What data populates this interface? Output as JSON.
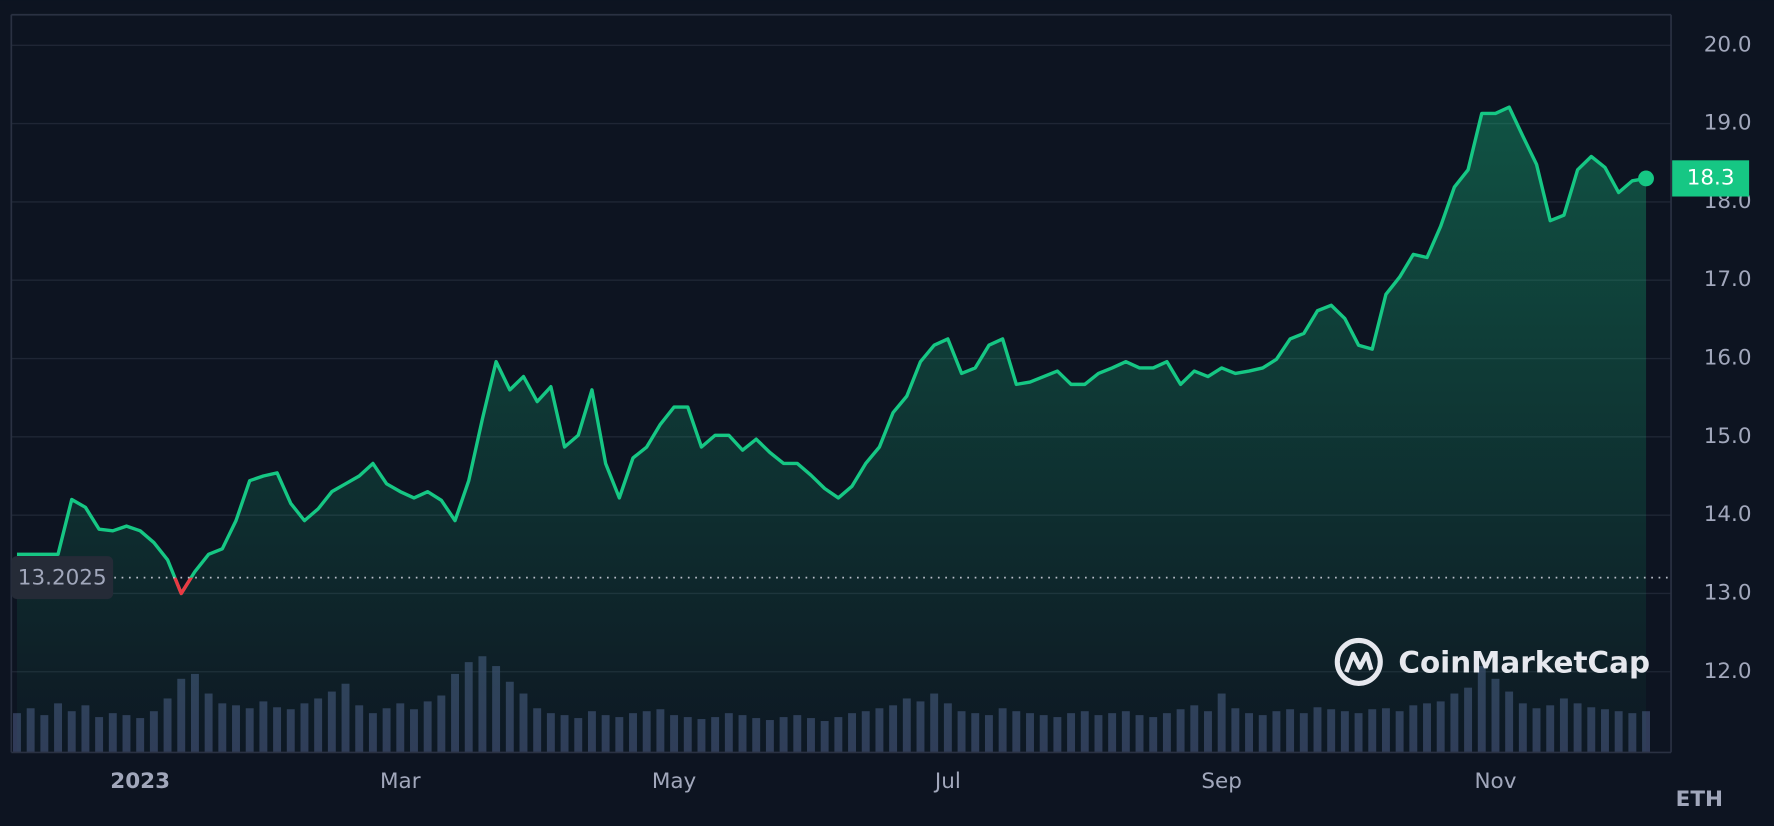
{
  "chart_data": {
    "type": "line",
    "categories": [
      null,
      null,
      null,
      null,
      null,
      null,
      null,
      null,
      null,
      "2023",
      null,
      null,
      null,
      null,
      null,
      null,
      null,
      null,
      null,
      null,
      null,
      null,
      null,
      null,
      null,
      null,
      null,
      null,
      "Mar",
      null,
      null,
      null,
      null,
      null,
      null,
      null,
      null,
      null,
      null,
      null,
      null,
      null,
      null,
      null,
      null,
      null,
      null,
      null,
      "May",
      null,
      null,
      null,
      null,
      null,
      null,
      null,
      null,
      null,
      null,
      null,
      null,
      null,
      null,
      null,
      null,
      null,
      null,
      null,
      "Jul",
      null,
      null,
      null,
      null,
      null,
      null,
      null,
      null,
      null,
      null,
      null,
      null,
      null,
      null,
      null,
      null,
      null,
      null,
      null,
      "Sep",
      null,
      null,
      null,
      null,
      null,
      null,
      null,
      null,
      null,
      null,
      null,
      null,
      null,
      null,
      null,
      null,
      null,
      null,
      null,
      "Nov",
      null,
      null,
      null,
      null,
      null,
      null,
      null,
      null,
      null,
      null,
      null
    ],
    "series": [
      {
        "color": "#16c784",
        "values": [
          13.5,
          13.5,
          13.5,
          13.5,
          14.2,
          14.1,
          13.82,
          13.8,
          13.86,
          13.8,
          13.65,
          13.43,
          13.0,
          13.28,
          13.5,
          13.57,
          13.93,
          14.44,
          14.5,
          14.54,
          14.15,
          13.93,
          14.08,
          14.3,
          14.4,
          14.5,
          14.66,
          14.4,
          14.3,
          14.22,
          14.3,
          14.19,
          13.93,
          14.44,
          15.23,
          15.96,
          15.6,
          15.77,
          15.45,
          15.64,
          14.87,
          15.02,
          15.6,
          14.66,
          14.22,
          14.73,
          14.87,
          15.16,
          15.38,
          15.38,
          14.87,
          15.02,
          15.02,
          14.83,
          14.97,
          14.8,
          14.66,
          14.66,
          14.51,
          14.34,
          14.22,
          14.37,
          14.66,
          14.87,
          15.31,
          15.52,
          15.96,
          16.17,
          16.25,
          15.81,
          15.88,
          16.17,
          16.25,
          15.67,
          15.7,
          15.77,
          15.84,
          15.67,
          15.67,
          15.81,
          15.88,
          15.96,
          15.88,
          15.88,
          15.96,
          15.67,
          15.84,
          15.77,
          15.88,
          15.81,
          15.84,
          15.88,
          15.99,
          16.25,
          16.32,
          16.61,
          16.68,
          16.51,
          16.17,
          16.12,
          16.82,
          17.04,
          17.33,
          17.29,
          17.69,
          18.19,
          18.41,
          19.13,
          19.13,
          19.21,
          18.84,
          18.48,
          17.76,
          17.83,
          18.41,
          18.58,
          18.44,
          18.12,
          18.27,
          18.3
        ]
      }
    ],
    "below_color": "#ea3943",
    "volume": [
      40,
      45,
      38,
      50,
      42,
      48,
      36,
      40,
      38,
      35,
      42,
      55,
      75,
      80,
      60,
      50,
      48,
      45,
      52,
      46,
      44,
      50,
      55,
      62,
      70,
      48,
      40,
      45,
      50,
      44,
      52,
      58,
      80,
      92,
      98,
      88,
      72,
      60,
      45,
      40,
      38,
      35,
      42,
      38,
      36,
      40,
      42,
      44,
      38,
      36,
      34,
      36,
      40,
      38,
      35,
      33,
      36,
      38,
      35,
      32,
      36,
      40,
      42,
      45,
      48,
      55,
      52,
      60,
      50,
      42,
      40,
      38,
      45,
      42,
      40,
      38,
      36,
      40,
      42,
      38,
      40,
      42,
      38,
      36,
      40,
      44,
      48,
      42,
      60,
      45,
      40,
      38,
      42,
      44,
      40,
      46,
      44,
      42,
      40,
      44,
      45,
      42,
      48,
      50,
      52,
      60,
      66,
      88,
      75,
      62,
      50,
      45,
      48,
      55,
      50,
      46,
      44,
      42,
      40,
      42
    ],
    "volume_color": "#3a4566",
    "baseline": 13.2025,
    "ylim": [
      10.97,
      20.39
    ],
    "yticks": [
      {
        "value": 12,
        "label": "12.0"
      },
      {
        "value": 13,
        "label": "13.0"
      },
      {
        "value": 14,
        "label": "14.0"
      },
      {
        "value": 15,
        "label": "15.0"
      },
      {
        "value": 16,
        "label": "16.0"
      },
      {
        "value": 17,
        "label": "17.0"
      },
      {
        "value": 18,
        "label": "18.0"
      },
      {
        "value": 19,
        "label": "19.0"
      },
      {
        "value": 20,
        "label": "20.0"
      }
    ],
    "grid": true,
    "unit": "ETH",
    "watermark": "CoinMarketCap"
  }
}
